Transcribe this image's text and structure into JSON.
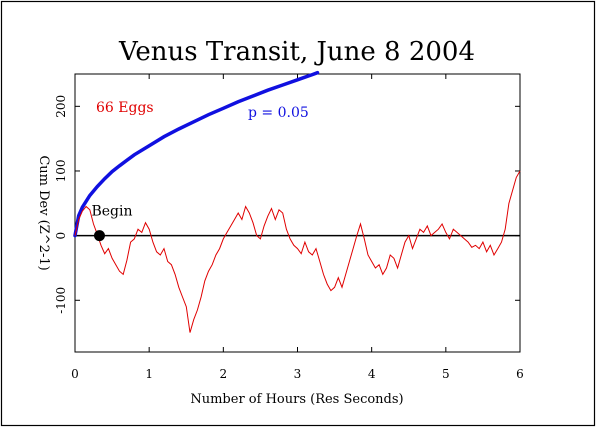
{
  "chart_data": {
    "type": "line",
    "title": "Venus Transit, June 8 2004",
    "xlabel": "Number of Hours (Res Seconds)",
    "ylabel": "Cum Dev (Z^2-1)",
    "xlim": [
      0,
      6
    ],
    "ylim": [
      -180,
      250
    ],
    "x_ticks": [
      "0",
      "1",
      "2",
      "3",
      "4",
      "5",
      "6"
    ],
    "y_ticks": [
      "-100",
      "0",
      "100",
      "200"
    ],
    "annotations": {
      "eggs": "66 Eggs",
      "probability": "p = 0.05",
      "begin": "Begin"
    },
    "begin_marker": {
      "x": 0.33,
      "y": 0
    },
    "colors": {
      "cumdev": "#e00000",
      "envelope": "#1010e0",
      "baseline": "#000000",
      "eggs_text": "#e00000",
      "p_text": "#1010e0"
    },
    "series": [
      {
        "role": "cumulative deviation",
        "x": [
          0,
          0.05,
          0.1,
          0.15,
          0.2,
          0.25,
          0.3,
          0.35,
          0.4,
          0.45,
          0.5,
          0.55,
          0.6,
          0.65,
          0.7,
          0.75,
          0.8,
          0.85,
          0.9,
          0.95,
          1.0,
          1.05,
          1.1,
          1.15,
          1.2,
          1.25,
          1.3,
          1.35,
          1.4,
          1.45,
          1.5,
          1.55,
          1.6,
          1.65,
          1.7,
          1.75,
          1.8,
          1.85,
          1.9,
          1.95,
          2.0,
          2.05,
          2.1,
          2.15,
          2.2,
          2.25,
          2.3,
          2.35,
          2.4,
          2.45,
          2.5,
          2.55,
          2.6,
          2.65,
          2.7,
          2.75,
          2.8,
          2.85,
          2.9,
          2.95,
          3.0,
          3.05,
          3.1,
          3.15,
          3.2,
          3.25,
          3.3,
          3.35,
          3.4,
          3.45,
          3.5,
          3.55,
          3.6,
          3.65,
          3.7,
          3.75,
          3.8,
          3.85,
          3.9,
          3.95,
          4.0,
          4.05,
          4.1,
          4.15,
          4.2,
          4.25,
          4.3,
          4.35,
          4.4,
          4.45,
          4.5,
          4.55,
          4.6,
          4.65,
          4.7,
          4.75,
          4.8,
          4.85,
          4.9,
          4.95,
          5.0,
          5.05,
          5.1,
          5.15,
          5.2,
          5.25,
          5.3,
          5.35,
          5.4,
          5.45,
          5.5,
          5.55,
          5.6,
          5.65,
          5.7,
          5.75,
          5.8,
          5.85,
          5.9,
          5.95,
          6.0
        ],
        "y": [
          0,
          25,
          38,
          45,
          40,
          18,
          2,
          -15,
          -28,
          -20,
          -35,
          -45,
          -55,
          -60,
          -38,
          -10,
          -5,
          10,
          5,
          20,
          10,
          -10,
          -25,
          -30,
          -20,
          -40,
          -45,
          -60,
          -80,
          -95,
          -110,
          -150,
          -130,
          -115,
          -95,
          -70,
          -55,
          -45,
          -30,
          -20,
          -5,
          5,
          15,
          25,
          35,
          25,
          45,
          35,
          20,
          0,
          -5,
          15,
          30,
          42,
          25,
          40,
          35,
          10,
          -5,
          -15,
          -20,
          -28,
          -10,
          -25,
          -30,
          -20,
          -40,
          -60,
          -75,
          -85,
          -80,
          -65,
          -80,
          -60,
          -40,
          -20,
          0,
          18,
          -5,
          -30,
          -40,
          -50,
          -45,
          -60,
          -50,
          -30,
          -35,
          -50,
          -30,
          -10,
          0,
          -20,
          -5,
          10,
          5,
          15,
          0,
          5,
          10,
          18,
          5,
          -5,
          10,
          5,
          0,
          -5,
          -10,
          -18,
          -15,
          -20,
          -10,
          -25,
          -15,
          -30,
          -20,
          -10,
          10,
          50,
          70,
          90,
          100
        ]
      },
      {
        "role": "significance envelope",
        "x": [
          0,
          0.05,
          0.1,
          0.2,
          0.3,
          0.4,
          0.5,
          0.6,
          0.8,
          1.0,
          1.2,
          1.4,
          1.6,
          1.8,
          2.0,
          2.2,
          2.4,
          2.6,
          2.8,
          3.0,
          3.1,
          3.2,
          3.27
        ],
        "y": [
          0,
          31,
          44,
          62,
          76,
          88,
          99,
          108,
          125,
          139,
          153,
          165,
          176,
          187,
          197,
          207,
          216,
          225,
          233,
          241,
          245,
          249,
          252
        ]
      }
    ]
  }
}
